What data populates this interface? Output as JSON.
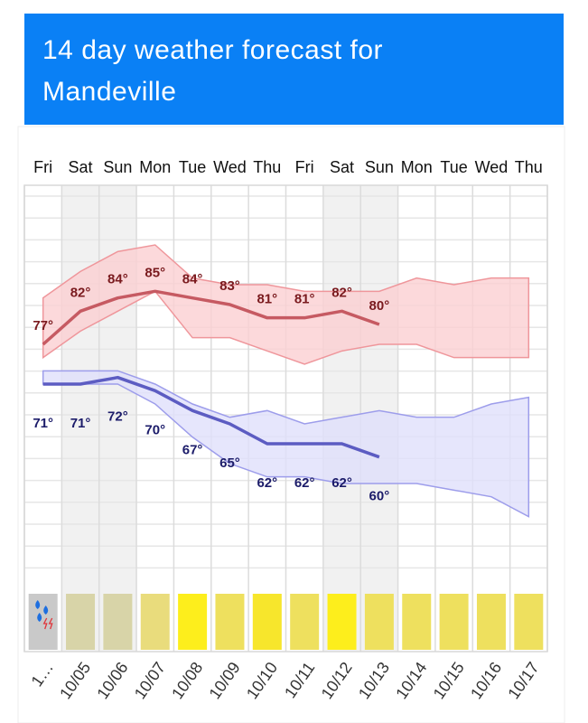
{
  "chart_data": {
    "type": "line",
    "title": "14 day weather forecast for Mandeville",
    "categories": [
      "Fri",
      "Sat",
      "Sun",
      "Mon",
      "Tue",
      "Wed",
      "Thu",
      "Fri",
      "Sat",
      "Sun",
      "Mon",
      "Tue",
      "Wed",
      "Thu"
    ],
    "dates": [
      "1…",
      "10/05",
      "10/06",
      "10/07",
      "10/08",
      "10/09",
      "10/10",
      "10/11",
      "10/12",
      "10/13",
      "10/14",
      "10/15",
      "10/16",
      "10/17"
    ],
    "weekend": [
      false,
      true,
      true,
      false,
      false,
      false,
      false,
      false,
      true,
      true,
      false,
      false,
      false,
      false
    ],
    "ylim": [
      41,
      101
    ],
    "series": [
      {
        "color": "#c65a62",
        "band_color": "#fbd0d2",
        "band_edge": "#ef969b",
        "label_class": "hi-lab",
        "label_offset": -20,
        "values": [
          77,
          82,
          84,
          85,
          84,
          83,
          81,
          81,
          82,
          80,
          null,
          null,
          null,
          null
        ],
        "value_labels": [
          "77°",
          "82°",
          "84°",
          "85°",
          "84°",
          "83°",
          "81°",
          "81°",
          "82°",
          "80°",
          null,
          null,
          null,
          null
        ],
        "band_upper": [
          84,
          88,
          91,
          92,
          87,
          86,
          86,
          85,
          85,
          85,
          87,
          86,
          87,
          87
        ],
        "band_lower": [
          75,
          79,
          82,
          85,
          78,
          78,
          76,
          74,
          76,
          77,
          77,
          75,
          75,
          75
        ]
      },
      {
        "color": "#5c5cc2",
        "band_color": "#e0e0fb",
        "band_edge": "#9d9deb",
        "label_class": "lo-lab",
        "label_offset": 44,
        "values": [
          71,
          71,
          72,
          70,
          67,
          65,
          62,
          62,
          62,
          60,
          null,
          null,
          null,
          null
        ],
        "value_labels": [
          "71°",
          "71°",
          "72°",
          "70°",
          "67°",
          "65°",
          "62°",
          "62°",
          "62°",
          "60°",
          null,
          null,
          null,
          null
        ],
        "band_upper": [
          73,
          73,
          73,
          71,
          68,
          66,
          67,
          65,
          66,
          67,
          66,
          66,
          68,
          69
        ],
        "band_lower": [
          71,
          71,
          71,
          68,
          63,
          59,
          57,
          57,
          56,
          56,
          56,
          55,
          54,
          51
        ]
      }
    ],
    "condition_colors": [
      "#c9c9c9",
      "#d8d4a8",
      "#d8d4a8",
      "#e9dc7c",
      "#fdee1c",
      "#eee05e",
      "#f7e62c",
      "#eee05e",
      "#fdee1c",
      "#eee05e",
      "#eee05e",
      "#eee05e",
      "#eee05e",
      "#eee05e"
    ]
  }
}
